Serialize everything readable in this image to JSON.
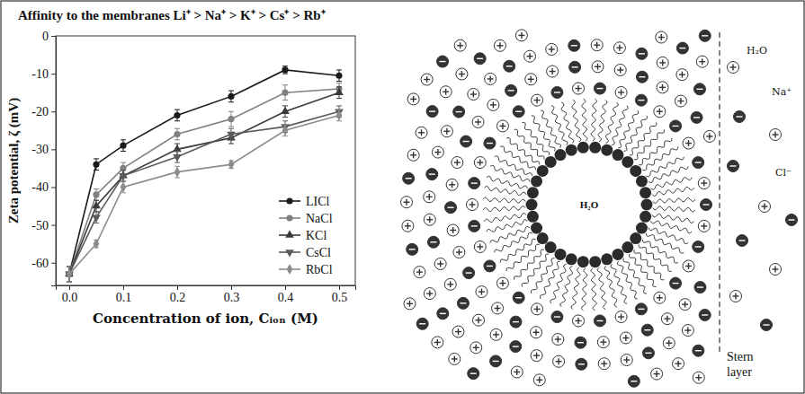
{
  "chart_data": {
    "type": "line",
    "title": "Affinity to the membranes Li⁺ > Na⁺ > K⁺ > Cs⁺ > Rb⁺",
    "xlabel": "Concentration of ion, Cᵢₒₙ (M)",
    "ylabel": "Zeta potential, ζ (mV)",
    "x": [
      0,
      0.05,
      0.1,
      0.2,
      0.3,
      0.4,
      0.5
    ],
    "xlim": [
      -0.025,
      0.53
    ],
    "xticks": [
      {
        "value": 0,
        "label": "0.0"
      },
      {
        "value": 0.1,
        "label": "0.1"
      },
      {
        "value": 0.2,
        "label": "0.2"
      },
      {
        "value": 0.3,
        "label": "0.3"
      },
      {
        "value": 0.4,
        "label": "0.4"
      },
      {
        "value": 0.5,
        "label": "0.5"
      }
    ],
    "ylim": [
      -66,
      0
    ],
    "yticks": [
      -60,
      -50,
      -40,
      -30,
      -20,
      -10,
      0
    ],
    "grid": false,
    "legend": "lower right",
    "series": [
      {
        "name": "LICl",
        "color": "#1a1a1a",
        "marker": "circle",
        "values": [
          -63,
          -34,
          -29,
          -21,
          -16,
          -9,
          -10.5
        ],
        "errors": [
          2,
          1.5,
          1.5,
          1.5,
          1.5,
          1,
          1.5
        ]
      },
      {
        "name": "NaCl",
        "color": "#808080",
        "marker": "circle",
        "values": [
          -63,
          -42,
          -35,
          -26,
          -22,
          -15,
          -14
        ],
        "errors": [
          2,
          1.5,
          1.5,
          1.5,
          2,
          2,
          1.5
        ]
      },
      {
        "name": "KCl",
        "color": "#3a3a3a",
        "marker": "triangle",
        "values": [
          -63,
          -45,
          -37,
          -30,
          -27,
          -20,
          -15
        ],
        "errors": [
          2,
          1.5,
          1.5,
          1.5,
          1.5,
          1.5,
          1.5
        ]
      },
      {
        "name": "CsCl",
        "color": "#5a5a5a",
        "marker": "triangle-down",
        "values": [
          -63,
          -48,
          -37,
          -32,
          -26,
          -24,
          -20
        ],
        "errors": [
          2,
          1.5,
          1.5,
          1.5,
          1.5,
          1.5,
          1.5
        ]
      },
      {
        "name": "RbCl",
        "color": "#8c8c8c",
        "marker": "diamond",
        "values": [
          -63,
          -55,
          -40,
          -36,
          -34,
          -25,
          -21
        ],
        "errors": [
          2,
          1,
          1.5,
          1.5,
          1,
          1.5,
          1.5
        ]
      }
    ]
  },
  "diagram": {
    "core_label": "H₂O",
    "labels": [
      "H₂O",
      "Na⁺",
      "Cl⁻"
    ],
    "stern_label": "Stern layer"
  }
}
